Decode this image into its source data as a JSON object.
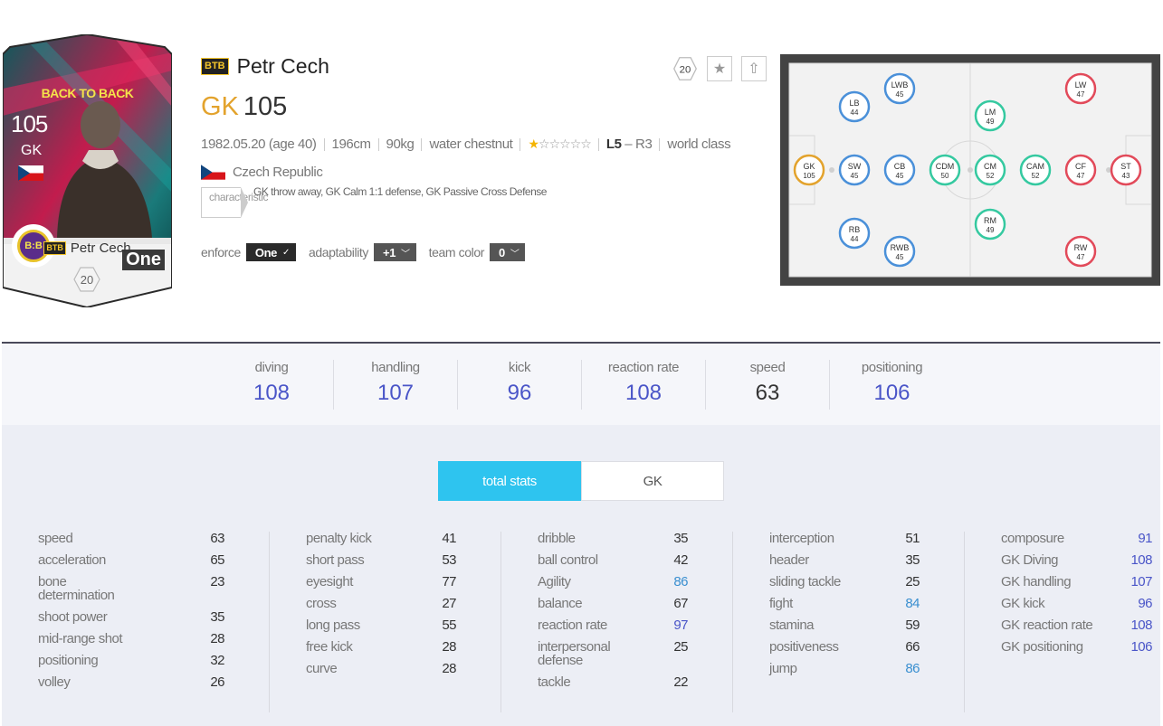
{
  "card": {
    "tag": "BACK TO BACK",
    "ovr": "105",
    "position": "GK",
    "badge_text": "B:B",
    "one_label": "One",
    "name": "Petr Cech",
    "season_badge": "BTB",
    "level": "20"
  },
  "info": {
    "season_badge": "BTB",
    "name": "Petr Cech",
    "position": "GK",
    "ovr": "105",
    "level_badge": "20",
    "birth": "1982.05.20 (age 40)",
    "height": "196cm",
    "weight": "90kg",
    "body_type": "water chestnut",
    "skill_stars": 1,
    "skill_max": 6,
    "foot_left": "L5",
    "foot_right": " – R3",
    "reputation": "world class",
    "nation": "Czech Republic",
    "trait_tag": "characteristic",
    "traits": "GK throw away, GK Calm 1:1 defense, GK Passive Cross Defense",
    "enforce_label": "enforce",
    "enforce_value": "One",
    "adaptability_label": "adaptability",
    "adaptability_value": "+1",
    "team_color_label": "team color",
    "team_color_value": "0"
  },
  "pitch_positions": [
    {
      "pos": "GK",
      "value": "105",
      "color": "#e3a32d"
    },
    {
      "pos": "LB",
      "value": "44",
      "color": "#4a90d9"
    },
    {
      "pos": "SW",
      "value": "45",
      "color": "#4a90d9"
    },
    {
      "pos": "RB",
      "value": "44",
      "color": "#4a90d9"
    },
    {
      "pos": "LWB",
      "value": "45",
      "color": "#4a90d9"
    },
    {
      "pos": "CB",
      "value": "45",
      "color": "#4a90d9"
    },
    {
      "pos": "RWB",
      "value": "45",
      "color": "#4a90d9"
    },
    {
      "pos": "CDM",
      "value": "50",
      "color": "#35c9a0"
    },
    {
      "pos": "LM",
      "value": "49",
      "color": "#35c9a0"
    },
    {
      "pos": "CM",
      "value": "52",
      "color": "#35c9a0"
    },
    {
      "pos": "RM",
      "value": "49",
      "color": "#35c9a0"
    },
    {
      "pos": "CAM",
      "value": "52",
      "color": "#35c9a0"
    },
    {
      "pos": "LW",
      "value": "47",
      "color": "#e24a5a"
    },
    {
      "pos": "CF",
      "value": "47",
      "color": "#e24a5a"
    },
    {
      "pos": "RW",
      "value": "47",
      "color": "#e24a5a"
    },
    {
      "pos": "ST",
      "value": "43",
      "color": "#e24a5a"
    }
  ],
  "summary": [
    {
      "label": "diving",
      "value": "108",
      "highlight": true
    },
    {
      "label": "handling",
      "value": "107",
      "highlight": true
    },
    {
      "label": "kick",
      "value": "96",
      "highlight": true
    },
    {
      "label": "reaction rate",
      "value": "108",
      "highlight": true
    },
    {
      "label": "speed",
      "value": "63",
      "highlight": false
    },
    {
      "label": "positioning",
      "value": "106",
      "highlight": true
    }
  ],
  "tabs": {
    "total": "total stats",
    "gk": "GK"
  },
  "stats": [
    [
      {
        "label": "speed",
        "value": "63",
        "tone": ""
      },
      {
        "label": "acceleration",
        "value": "65",
        "tone": ""
      },
      {
        "label": "bone determination",
        "value": "23",
        "tone": ""
      },
      {
        "label": "shoot power",
        "value": "35",
        "tone": ""
      },
      {
        "label": "mid-range shot",
        "value": "28",
        "tone": ""
      },
      {
        "label": "positioning",
        "value": "32",
        "tone": ""
      },
      {
        "label": "volley",
        "value": "26",
        "tone": ""
      }
    ],
    [
      {
        "label": "penalty kick",
        "value": "41",
        "tone": ""
      },
      {
        "label": "short pass",
        "value": "53",
        "tone": ""
      },
      {
        "label": "eyesight",
        "value": "77",
        "tone": ""
      },
      {
        "label": "cross",
        "value": "27",
        "tone": ""
      },
      {
        "label": "long pass",
        "value": "55",
        "tone": ""
      },
      {
        "label": "free kick",
        "value": "28",
        "tone": ""
      },
      {
        "label": "curve",
        "value": "28",
        "tone": ""
      }
    ],
    [
      {
        "label": "dribble",
        "value": "35",
        "tone": ""
      },
      {
        "label": "ball control",
        "value": "42",
        "tone": ""
      },
      {
        "label": "Agility",
        "value": "86",
        "tone": "teal"
      },
      {
        "label": "balance",
        "value": "67",
        "tone": ""
      },
      {
        "label": "reaction rate",
        "value": "97",
        "tone": "blue"
      },
      {
        "label": "interpersonal defense",
        "value": "25",
        "tone": ""
      },
      {
        "label": "tackle",
        "value": "22",
        "tone": ""
      }
    ],
    [
      {
        "label": "interception",
        "value": "51",
        "tone": ""
      },
      {
        "label": "header",
        "value": "35",
        "tone": ""
      },
      {
        "label": "sliding tackle",
        "value": "25",
        "tone": ""
      },
      {
        "label": "fight",
        "value": "84",
        "tone": "teal"
      },
      {
        "label": "stamina",
        "value": "59",
        "tone": ""
      },
      {
        "label": "positiveness",
        "value": "66",
        "tone": ""
      },
      {
        "label": "jump",
        "value": "86",
        "tone": "teal"
      }
    ],
    [
      {
        "label": "composure",
        "value": "91",
        "tone": "blue"
      },
      {
        "label": "GK Diving",
        "value": "108",
        "tone": "blue"
      },
      {
        "label": "GK handling",
        "value": "107",
        "tone": "blue"
      },
      {
        "label": "GK kick",
        "value": "96",
        "tone": "blue"
      },
      {
        "label": "GK reaction rate",
        "value": "108",
        "tone": "blue"
      },
      {
        "label": "GK positioning",
        "value": "106",
        "tone": "blue"
      }
    ]
  ]
}
